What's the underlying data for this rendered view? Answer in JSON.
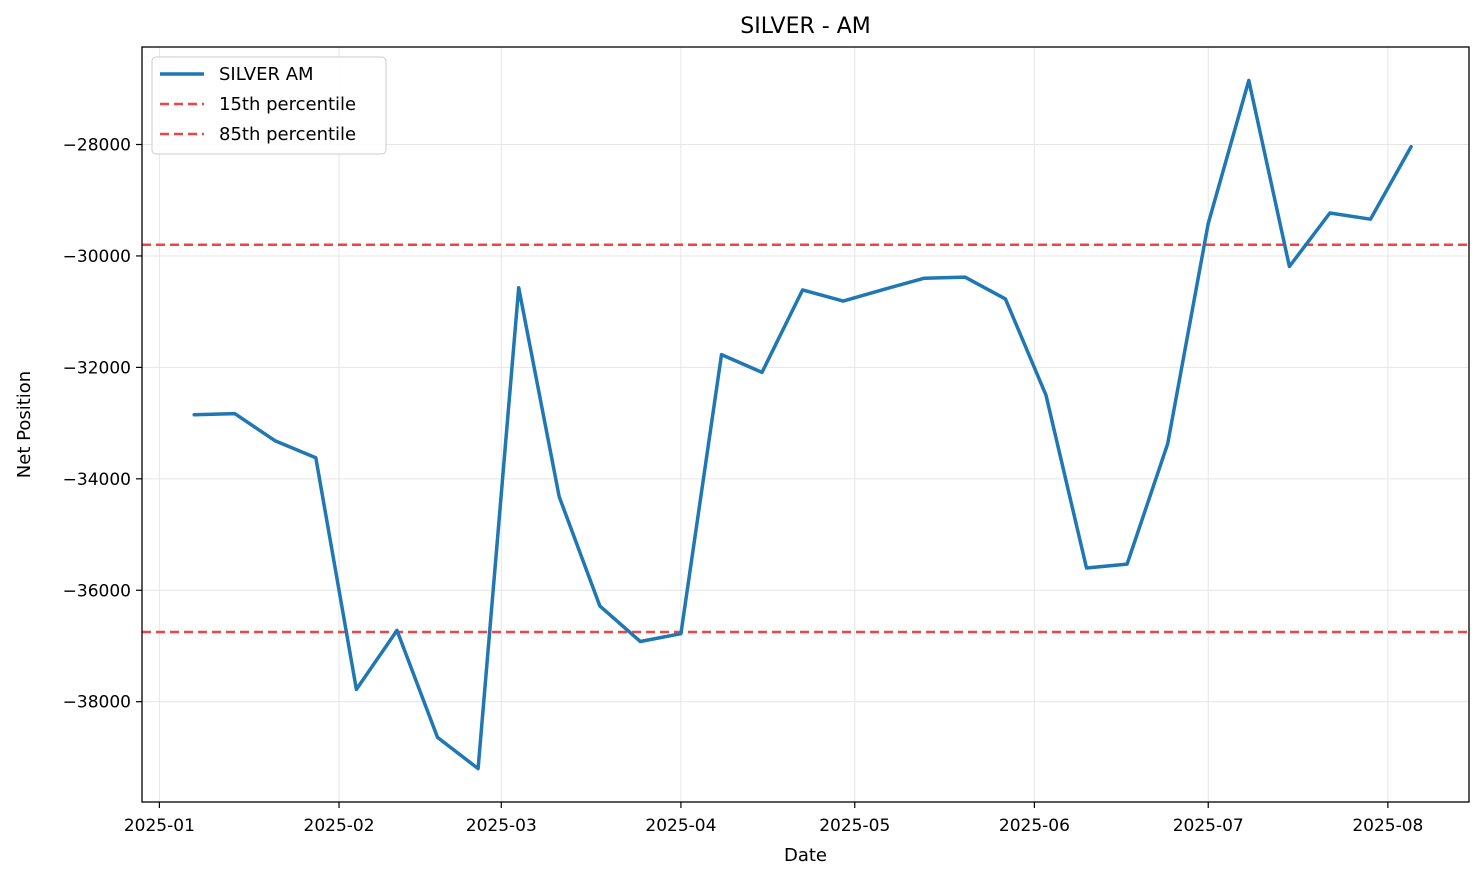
{
  "chart_data": {
    "type": "line",
    "title": "SILVER - AM",
    "xlabel": "Date",
    "ylabel": "Net Position",
    "x_ticks": [
      "2025-01",
      "2025-02",
      "2025-03",
      "2025-04",
      "2025-05",
      "2025-06",
      "2025-07",
      "2025-08"
    ],
    "y_ticks": [
      -28000,
      -30000,
      -32000,
      -34000,
      -36000,
      -38000
    ],
    "y_tick_labels": [
      "−28000",
      "−30000",
      "−32000",
      "−34000",
      "−36000",
      "−38000"
    ],
    "ylim": [
      -39800,
      -26250
    ],
    "xlim": [
      "2024-12-29",
      "2025-08-15"
    ],
    "grid": true,
    "legend_position": "top-left",
    "series": [
      {
        "name": "SILVER AM",
        "color": "#1f77b4",
        "x": [
          "2025-01-07",
          "2025-01-14",
          "2025-01-21",
          "2025-01-28",
          "2025-02-04",
          "2025-02-11",
          "2025-02-18",
          "2025-02-25",
          "2025-03-04",
          "2025-03-11",
          "2025-03-18",
          "2025-03-25",
          "2025-04-01",
          "2025-04-08",
          "2025-04-15",
          "2025-04-22",
          "2025-04-29",
          "2025-05-06",
          "2025-05-13",
          "2025-05-20",
          "2025-05-27",
          "2025-06-03",
          "2025-06-10",
          "2025-06-17",
          "2025-06-24",
          "2025-07-01",
          "2025-07-08",
          "2025-07-15",
          "2025-07-22",
          "2025-07-29",
          "2025-08-05"
        ],
        "y": [
          -32850,
          -32830,
          -33320,
          -33620,
          -37780,
          -36720,
          -38640,
          -39200,
          -30570,
          -34320,
          -36280,
          -36920,
          -36780,
          -31770,
          -32090,
          -30610,
          -30810,
          -30600,
          -30400,
          -30380,
          -30770,
          -32500,
          -35600,
          -35530,
          -33370,
          -29420,
          -26850,
          -30190,
          -29230,
          -29340,
          -28040
        ]
      }
    ],
    "reference_lines": [
      {
        "name": "15th percentile",
        "y": -36750,
        "color": "#ef4444",
        "style": "dashed"
      },
      {
        "name": "85th percentile",
        "y": -29800,
        "color": "#ef4444",
        "style": "dashed"
      }
    ]
  }
}
